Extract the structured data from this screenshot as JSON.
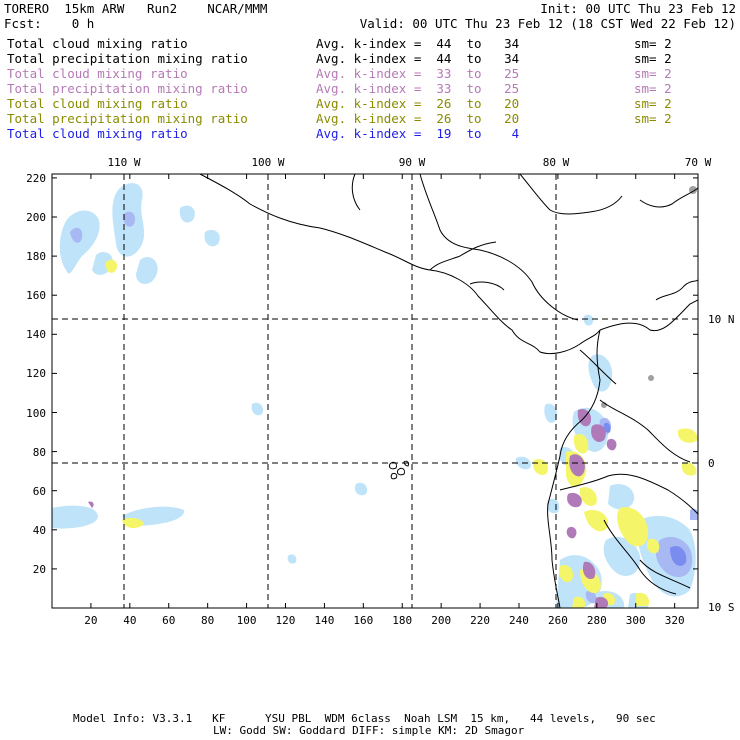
{
  "header": {
    "model": "TORERO  15km ARW   Run2    NCAR/MMM",
    "init": "Init: 00 UTC Thu 23 Feb 12",
    "fcst": "Fcst:    0 h",
    "valid": "Valid: 00 UTC Thu 23 Feb 12 (18 CST Wed 22 Feb 12)"
  },
  "legend": [
    {
      "field": "Total cloud mixing ratio",
      "kindex": "Avg. k-index =  44  to   34",
      "sm": "sm= 2",
      "color": "#000000"
    },
    {
      "field": "Total precipitation mixing ratio",
      "kindex": "Avg. k-index =  44  to   34",
      "sm": "sm= 2",
      "color": "#000000"
    },
    {
      "field": "Total cloud mixing ratio",
      "kindex": "Avg. k-index =  33  to   25",
      "sm": "sm= 2",
      "color": "#b57ab5"
    },
    {
      "field": "Total precipitation mixing ratio",
      "kindex": "Avg. k-index =  33  to   25",
      "sm": "sm= 2",
      "color": "#b57ab5"
    },
    {
      "field": "Total cloud mixing ratio",
      "kindex": "Avg. k-index =  26  to   20",
      "sm": "sm= 2",
      "color": "#8b8b00"
    },
    {
      "field": "Total precipitation mixing ratio",
      "kindex": "Avg. k-index =  26  to   20",
      "sm": "sm= 2",
      "color": "#8b8b00"
    },
    {
      "field": "Total cloud mixing ratio",
      "kindex": "Avg. k-index =  19  to    4",
      "sm": "",
      "color": "#1e1ee6"
    }
  ],
  "map": {
    "lon_labels": [
      "110 W",
      "100 W",
      "90 W",
      "80 W",
      "70 W"
    ],
    "lat_labels": [
      "10 N",
      "0",
      "10 S"
    ],
    "y_ticks": [
      "220",
      "200",
      "180",
      "160",
      "140",
      "120",
      "100",
      "80",
      "60",
      "40",
      "20"
    ],
    "x_ticks": [
      "20",
      "40",
      "60",
      "80",
      "100",
      "120",
      "140",
      "160",
      "180",
      "200",
      "220",
      "240",
      "260",
      "280",
      "300",
      "320"
    ],
    "colors": {
      "light_blue": "#bfe4fa",
      "blue": "#a8b8f2",
      "dark_blue": "#7b8cf0",
      "yellow": "#f5f56a",
      "purple": "#b07ab8",
      "grey": "#a0a0a0"
    }
  },
  "footer": {
    "line1": "Model Info: V3.3.1   KF      YSU PBL  WDM 6class  Noah LSM  15 km,   44 levels,   90 sec",
    "line2": "LW: Godd SW: Goddard DIFF: simple KM: 2D Smagor"
  }
}
